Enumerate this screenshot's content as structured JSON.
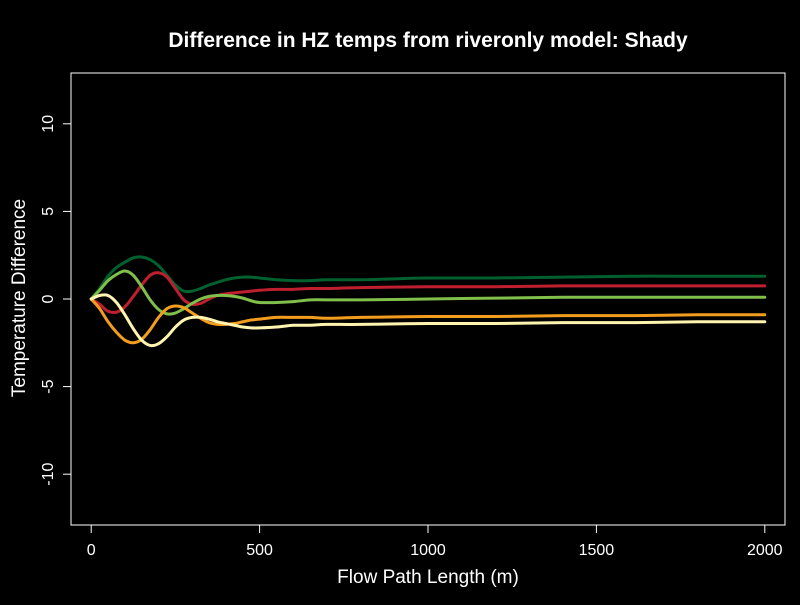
{
  "chart_data": {
    "type": "line",
    "title": "Difference in HZ temps from riveronly model: Shady",
    "xlabel": "Flow Path Length (m)",
    "ylabel": "Temperature Difference",
    "xlim": [
      -60,
      2060
    ],
    "ylim": [
      -12.9,
      12.9
    ],
    "xticks": [
      0,
      500,
      1000,
      1500,
      2000
    ],
    "yticks": [
      -10,
      -5,
      0,
      5,
      10
    ],
    "background": "#000000",
    "foreground": "#ffffff",
    "grid": false,
    "series": [
      {
        "color": "#00612E",
        "points": [
          [
            0,
            0
          ],
          [
            25,
            0.6
          ],
          [
            50,
            1.3
          ],
          [
            75,
            1.8
          ],
          [
            100,
            2.1
          ],
          [
            125,
            2.35
          ],
          [
            150,
            2.4
          ],
          [
            175,
            2.25
          ],
          [
            200,
            1.9
          ],
          [
            225,
            1.35
          ],
          [
            250,
            0.8
          ],
          [
            275,
            0.45
          ],
          [
            300,
            0.45
          ],
          [
            325,
            0.6
          ],
          [
            350,
            0.8
          ],
          [
            375,
            0.95
          ],
          [
            400,
            1.1
          ],
          [
            425,
            1.2
          ],
          [
            450,
            1.25
          ],
          [
            475,
            1.25
          ],
          [
            500,
            1.2
          ],
          [
            550,
            1.1
          ],
          [
            600,
            1.05
          ],
          [
            650,
            1.05
          ],
          [
            700,
            1.1
          ],
          [
            800,
            1.1
          ],
          [
            900,
            1.15
          ],
          [
            1000,
            1.2
          ],
          [
            1200,
            1.2
          ],
          [
            1400,
            1.25
          ],
          [
            1600,
            1.3
          ],
          [
            1800,
            1.3
          ],
          [
            2000,
            1.3
          ]
        ]
      },
      {
        "color": "#BF1F2E",
        "points": [
          [
            0,
            0
          ],
          [
            25,
            -0.3
          ],
          [
            50,
            -0.7
          ],
          [
            75,
            -0.75
          ],
          [
            100,
            -0.45
          ],
          [
            125,
            0.15
          ],
          [
            150,
            0.8
          ],
          [
            175,
            1.35
          ],
          [
            200,
            1.5
          ],
          [
            225,
            1.25
          ],
          [
            250,
            0.6
          ],
          [
            275,
            -0.05
          ],
          [
            300,
            -0.3
          ],
          [
            325,
            -0.25
          ],
          [
            350,
            0
          ],
          [
            375,
            0.2
          ],
          [
            400,
            0.3
          ],
          [
            425,
            0.35
          ],
          [
            450,
            0.4
          ],
          [
            475,
            0.45
          ],
          [
            500,
            0.5
          ],
          [
            550,
            0.55
          ],
          [
            600,
            0.55
          ],
          [
            650,
            0.6
          ],
          [
            700,
            0.6
          ],
          [
            800,
            0.65
          ],
          [
            1000,
            0.7
          ],
          [
            1200,
            0.7
          ],
          [
            1400,
            0.75
          ],
          [
            1600,
            0.75
          ],
          [
            1800,
            0.75
          ],
          [
            2000,
            0.75
          ]
        ]
      },
      {
        "color": "#7FBF4A",
        "points": [
          [
            0,
            0
          ],
          [
            25,
            0.5
          ],
          [
            50,
            1.05
          ],
          [
            75,
            1.4
          ],
          [
            100,
            1.6
          ],
          [
            125,
            1.35
          ],
          [
            150,
            0.7
          ],
          [
            175,
            -0.05
          ],
          [
            200,
            -0.6
          ],
          [
            225,
            -0.85
          ],
          [
            250,
            -0.8
          ],
          [
            275,
            -0.55
          ],
          [
            300,
            -0.25
          ],
          [
            325,
            0
          ],
          [
            350,
            0.15
          ],
          [
            375,
            0.2
          ],
          [
            400,
            0.2
          ],
          [
            425,
            0.15
          ],
          [
            450,
            0.05
          ],
          [
            475,
            -0.1
          ],
          [
            500,
            -0.2
          ],
          [
            550,
            -0.2
          ],
          [
            600,
            -0.15
          ],
          [
            650,
            -0.05
          ],
          [
            700,
            -0.05
          ],
          [
            800,
            -0.05
          ],
          [
            1000,
            0
          ],
          [
            1200,
            0.05
          ],
          [
            1400,
            0.1
          ],
          [
            1600,
            0.1
          ],
          [
            1800,
            0.1
          ],
          [
            2000,
            0.1
          ]
        ]
      },
      {
        "color": "#F29D1E",
        "points": [
          [
            0,
            0
          ],
          [
            25,
            -0.55
          ],
          [
            50,
            -1.3
          ],
          [
            75,
            -1.9
          ],
          [
            100,
            -2.35
          ],
          [
            125,
            -2.5
          ],
          [
            150,
            -2.3
          ],
          [
            175,
            -1.75
          ],
          [
            200,
            -1.05
          ],
          [
            225,
            -0.55
          ],
          [
            250,
            -0.4
          ],
          [
            275,
            -0.5
          ],
          [
            300,
            -0.8
          ],
          [
            325,
            -1.1
          ],
          [
            350,
            -1.35
          ],
          [
            375,
            -1.45
          ],
          [
            400,
            -1.45
          ],
          [
            425,
            -1.4
          ],
          [
            450,
            -1.3
          ],
          [
            475,
            -1.2
          ],
          [
            500,
            -1.15
          ],
          [
            550,
            -1.05
          ],
          [
            600,
            -1.05
          ],
          [
            650,
            -1.05
          ],
          [
            700,
            -1.1
          ],
          [
            800,
            -1.05
          ],
          [
            1000,
            -1
          ],
          [
            1200,
            -1
          ],
          [
            1400,
            -0.95
          ],
          [
            1600,
            -0.95
          ],
          [
            1800,
            -0.9
          ],
          [
            2000,
            -0.9
          ]
        ]
      },
      {
        "color": "#FFF5B0",
        "points": [
          [
            0,
            0
          ],
          [
            25,
            0.2
          ],
          [
            50,
            0.2
          ],
          [
            75,
            -0.2
          ],
          [
            100,
            -0.9
          ],
          [
            125,
            -1.7
          ],
          [
            150,
            -2.35
          ],
          [
            175,
            -2.65
          ],
          [
            200,
            -2.55
          ],
          [
            225,
            -2.15
          ],
          [
            250,
            -1.6
          ],
          [
            275,
            -1.2
          ],
          [
            300,
            -1.05
          ],
          [
            325,
            -1.05
          ],
          [
            350,
            -1.15
          ],
          [
            375,
            -1.3
          ],
          [
            400,
            -1.4
          ],
          [
            425,
            -1.5
          ],
          [
            450,
            -1.6
          ],
          [
            475,
            -1.65
          ],
          [
            500,
            -1.65
          ],
          [
            550,
            -1.6
          ],
          [
            600,
            -1.5
          ],
          [
            650,
            -1.5
          ],
          [
            700,
            -1.45
          ],
          [
            800,
            -1.45
          ],
          [
            1000,
            -1.4
          ],
          [
            1200,
            -1.4
          ],
          [
            1400,
            -1.35
          ],
          [
            1600,
            -1.35
          ],
          [
            1800,
            -1.3
          ],
          [
            2000,
            -1.3
          ]
        ]
      }
    ]
  }
}
